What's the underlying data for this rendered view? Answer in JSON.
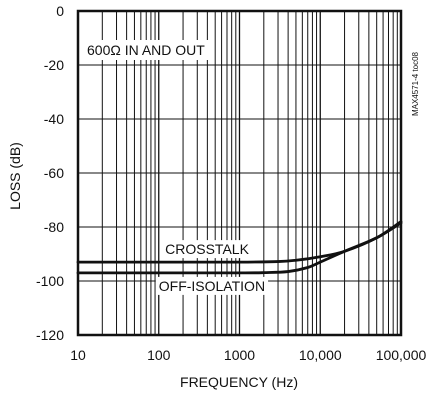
{
  "chart_data": {
    "type": "line",
    "xscale": "log",
    "xlim": [
      10,
      100000
    ],
    "ylim": [
      -120,
      0
    ],
    "xticks": [
      10,
      100,
      1000,
      10000,
      100000
    ],
    "xtick_labels": [
      "10",
      "100",
      "1000",
      "10,000",
      "100,000"
    ],
    "yticks": [
      0,
      -20,
      -40,
      -60,
      -80,
      -100,
      -120
    ],
    "ytick_labels": [
      "0",
      "-20",
      "-40",
      "-60",
      "-80",
      "-100",
      "-120"
    ],
    "xlabel": "FREQUENCY (Hz)",
    "ylabel": "LOSS (dB)",
    "grid": true,
    "annotations": {
      "condition": "600Ω IN AND OUT",
      "figure_code": "MAX4571-4 toc08"
    },
    "series": [
      {
        "name": "CROSSTALK",
        "x": [
          10,
          100,
          1000,
          3000,
          5000,
          10000,
          20000,
          50000,
          100000
        ],
        "y": [
          -93,
          -93,
          -93,
          -92.8,
          -92.3,
          -91,
          -89,
          -84,
          -78
        ]
      },
      {
        "name": "OFF-ISOLATION",
        "x": [
          10,
          100,
          1000,
          2000,
          4000,
          7000,
          10000,
          20000,
          50000,
          100000
        ],
        "y": [
          -97,
          -97,
          -97,
          -96.9,
          -96.5,
          -95,
          -93,
          -89,
          -84,
          -78.5
        ]
      }
    ],
    "colors": {
      "series": "#111111",
      "grid": "#111111"
    }
  }
}
